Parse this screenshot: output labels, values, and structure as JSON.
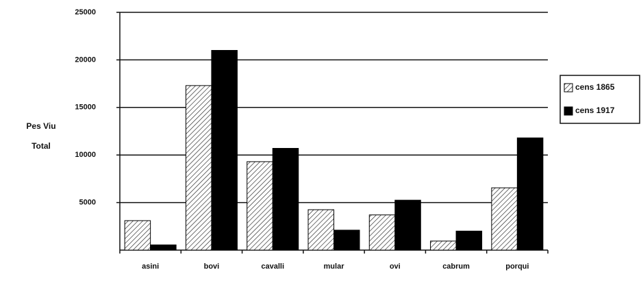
{
  "chart_data": {
    "type": "bar",
    "ylabel": [
      "Pes Viu",
      "Total"
    ],
    "categories": [
      "asini",
      "bovi",
      "cavalli",
      "mular",
      "ovi",
      "cabrum",
      "porqui"
    ],
    "series": [
      {
        "name": "cens 1865",
        "color": "#000000",
        "pattern": "hatch",
        "values": [
          3100,
          17300,
          9300,
          4250,
          3700,
          950,
          6550
        ]
      },
      {
        "name": "cens 1917",
        "color": "#000000",
        "pattern": "solid",
        "values": [
          550,
          21000,
          10700,
          2100,
          5250,
          2000,
          11800
        ]
      }
    ],
    "ylim": [
      0,
      25000
    ],
    "yticks": [
      5000,
      10000,
      15000,
      20000,
      25000
    ],
    "grid": true,
    "legend": "right"
  }
}
